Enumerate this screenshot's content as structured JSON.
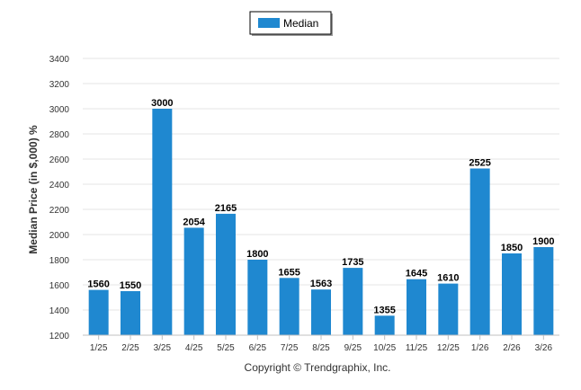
{
  "chart_data": {
    "type": "bar",
    "categories": [
      "1/25",
      "2/25",
      "3/25",
      "4/25",
      "5/25",
      "6/25",
      "7/25",
      "8/25",
      "9/25",
      "10/25",
      "11/25",
      "12/25",
      "1/26",
      "2/26",
      "3/26"
    ],
    "series": [
      {
        "name": "Median",
        "values": [
          1560,
          1550,
          3000,
          2054,
          2165,
          1800,
          1655,
          1563,
          1735,
          1355,
          1645,
          1610,
          2525,
          1850,
          1900
        ]
      }
    ],
    "ylabel": "Median Price (in $,000) %",
    "ylim": [
      1200,
      3400
    ],
    "yticks": [
      1200,
      1400,
      1600,
      1800,
      2000,
      2200,
      2400,
      2600,
      2800,
      3000,
      3200,
      3400
    ],
    "grid": true,
    "legend": "top-center",
    "bar_color": "#1f88d0",
    "copyright": "Copyright © Trendgraphix, Inc."
  }
}
